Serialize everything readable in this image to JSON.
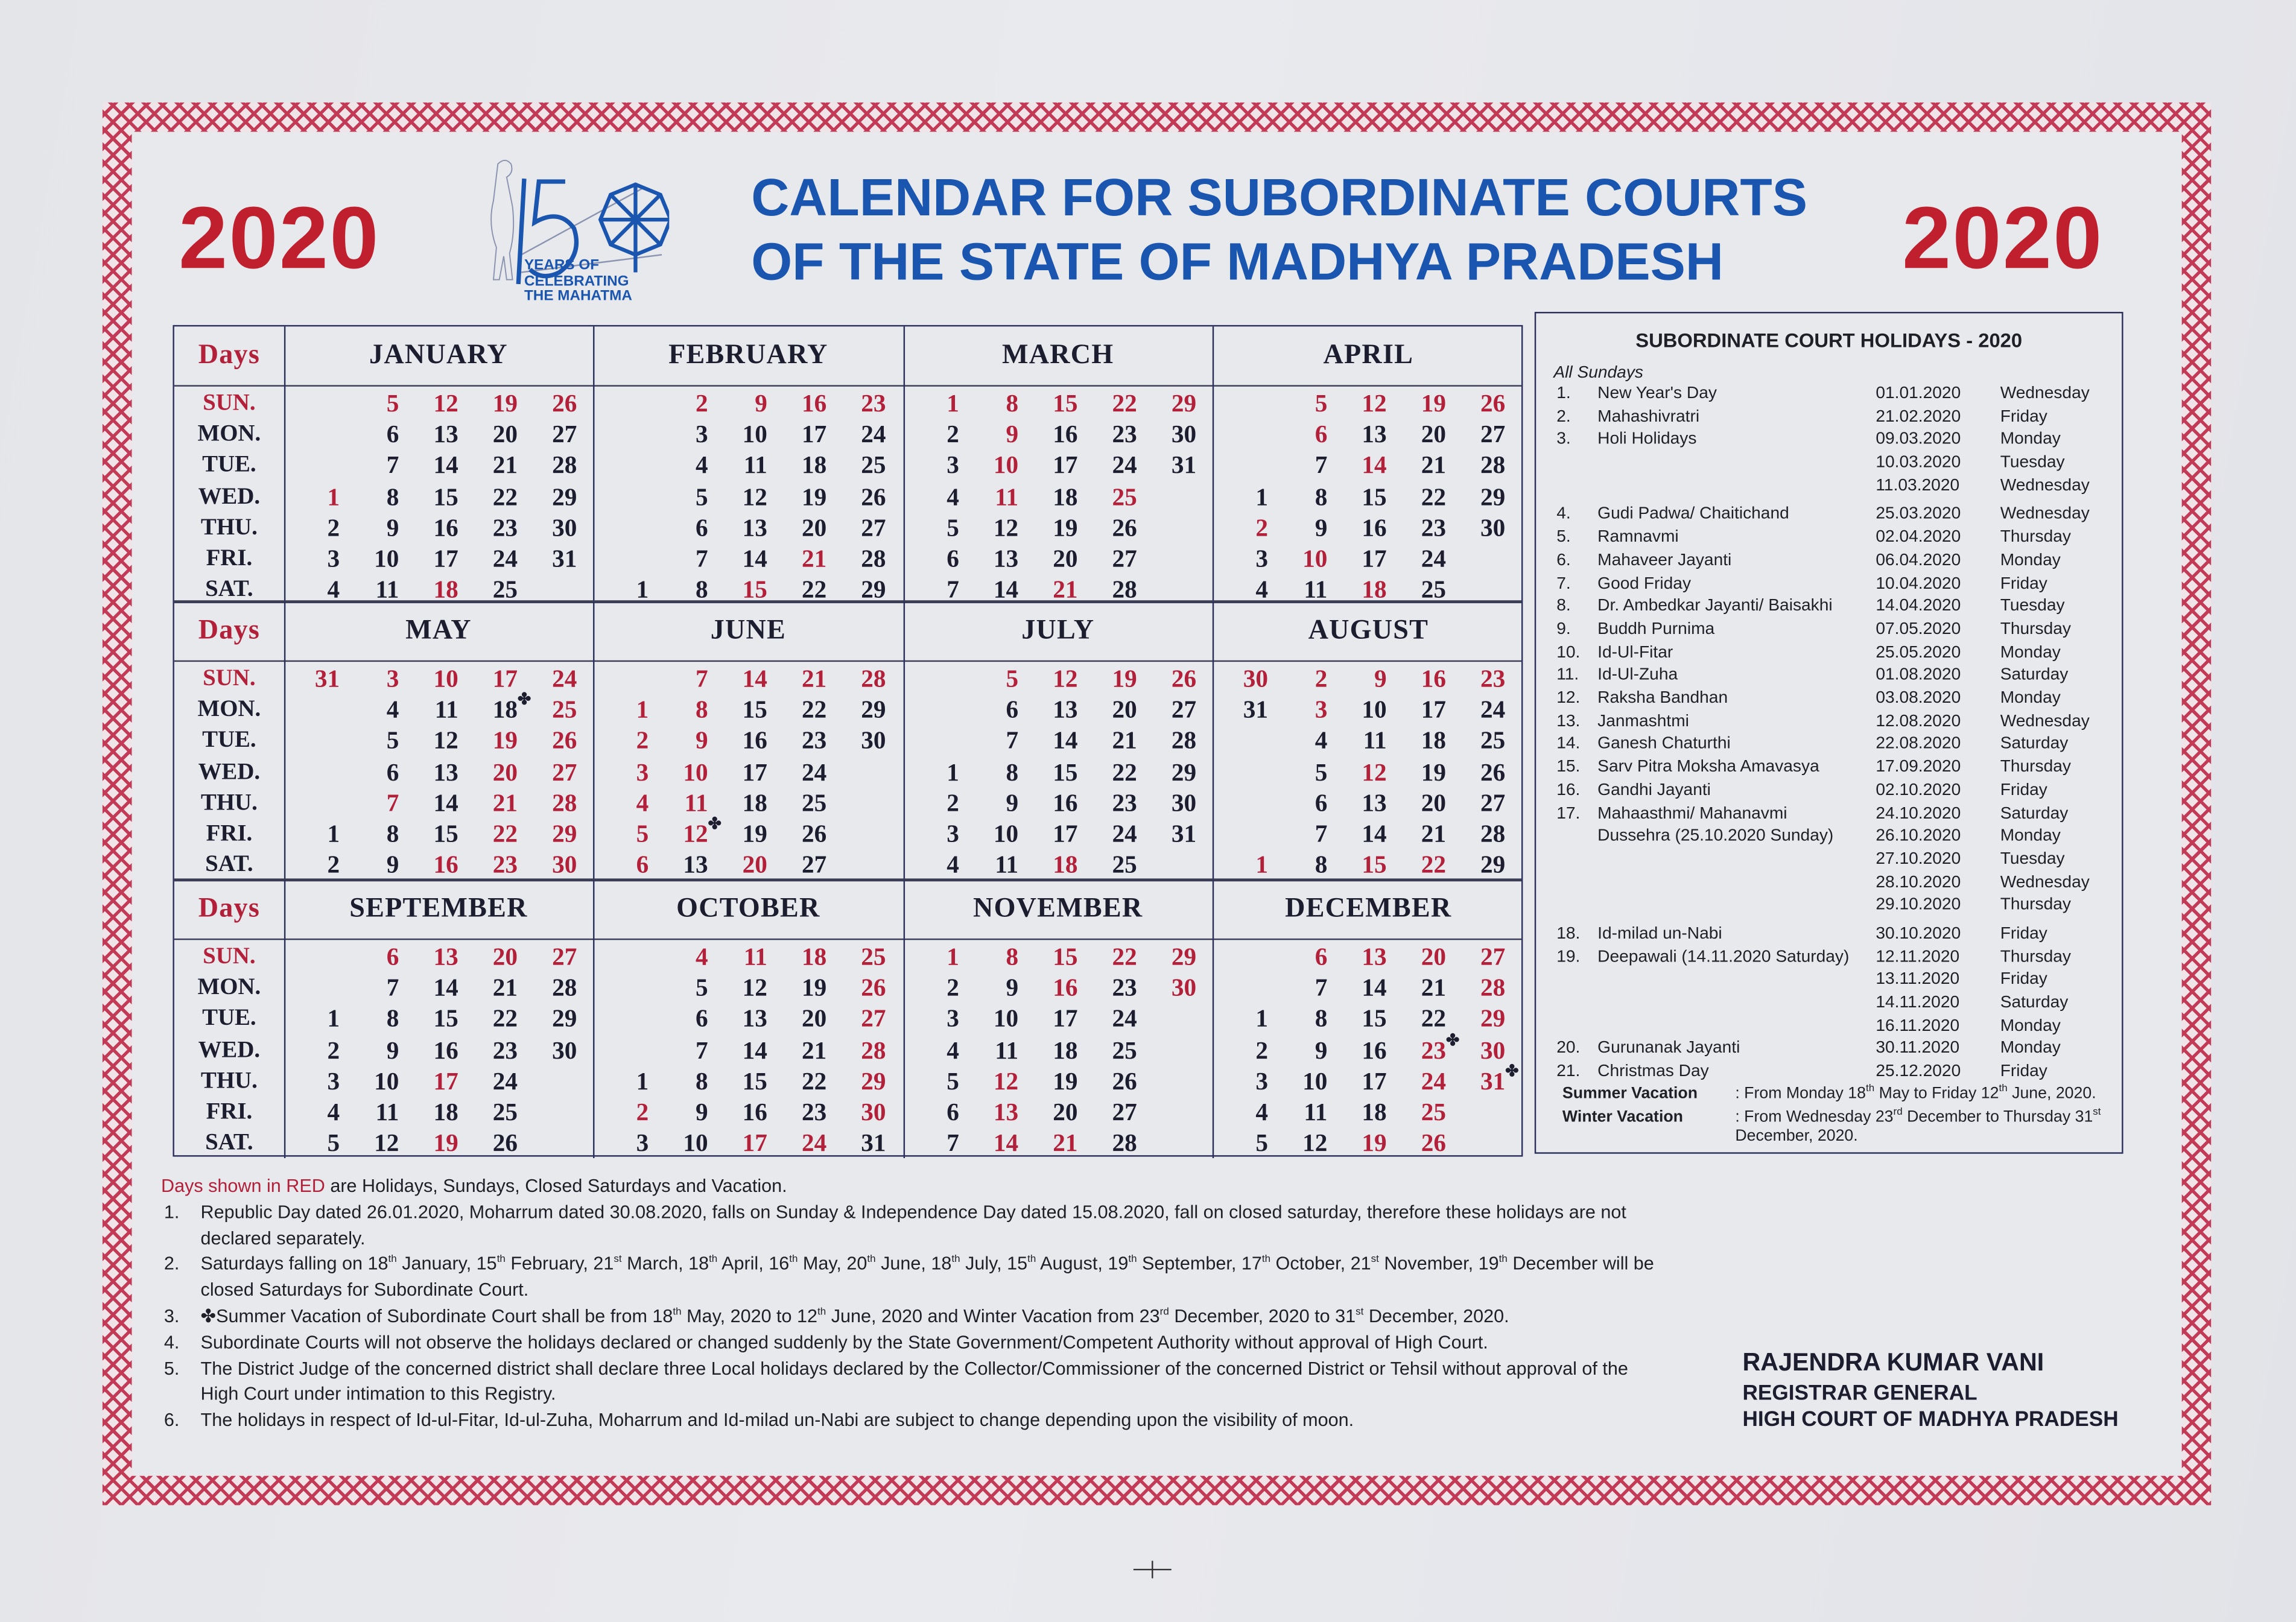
{
  "header": {
    "year_left": "2020",
    "year_right": "2020",
    "title_line1": "CALENDAR FOR SUBORDINATE COURTS",
    "title_line2": "OF THE STATE OF MADHYA PRADESH",
    "logo": {
      "number": "150",
      "line1": "YEARS OF",
      "line2": "CELEBRATING",
      "line3": "THE MAHATMA",
      "icon": "gandhi-charkha-logo"
    }
  },
  "colors": {
    "red": "#b3203a",
    "blue": "#1a55b0",
    "text": "#1d1d30",
    "border": "#c23a55"
  },
  "calendar": {
    "days_label": "Days",
    "day_names": [
      "SUN.",
      "MON.",
      "TUE.",
      "WED.",
      "THU.",
      "FRI.",
      "SAT."
    ],
    "months": [
      {
        "name": "JANUARY",
        "first_weekday": 3,
        "days": 31,
        "red": [
          1,
          5,
          12,
          18,
          19,
          26
        ],
        "star": []
      },
      {
        "name": "FEBRUARY",
        "first_weekday": 6,
        "days": 29,
        "red": [
          2,
          9,
          15,
          16,
          21,
          23
        ],
        "star": []
      },
      {
        "name": "MARCH",
        "first_weekday": 0,
        "days": 31,
        "red": [
          1,
          8,
          9,
          10,
          11,
          15,
          21,
          22,
          25,
          29
        ],
        "star": []
      },
      {
        "name": "APRIL",
        "first_weekday": 3,
        "days": 30,
        "red": [
          2,
          5,
          6,
          10,
          12,
          14,
          18,
          19,
          26
        ],
        "star": []
      },
      {
        "name": "MAY",
        "first_weekday": 5,
        "days": 31,
        "red": [
          3,
          7,
          10,
          16,
          17,
          19,
          20,
          21,
          22,
          23,
          24,
          25,
          26,
          27,
          28,
          29,
          30,
          31
        ],
        "star": [
          18
        ]
      },
      {
        "name": "JUNE",
        "first_weekday": 1,
        "days": 30,
        "red": [
          1,
          2,
          3,
          4,
          5,
          6,
          7,
          8,
          9,
          10,
          11,
          12,
          14,
          20,
          21,
          28
        ],
        "star": [
          12
        ]
      },
      {
        "name": "JULY",
        "first_weekday": 3,
        "days": 31,
        "red": [
          5,
          12,
          18,
          19,
          26
        ],
        "star": []
      },
      {
        "name": "AUGUST",
        "first_weekday": 6,
        "days": 31,
        "red": [
          1,
          2,
          3,
          9,
          12,
          15,
          16,
          22,
          23,
          30
        ],
        "star": []
      },
      {
        "name": "SEPTEMBER",
        "first_weekday": 2,
        "days": 30,
        "red": [
          6,
          13,
          17,
          19,
          20,
          27
        ],
        "star": []
      },
      {
        "name": "OCTOBER",
        "first_weekday": 4,
        "days": 31,
        "red": [
          2,
          4,
          11,
          17,
          18,
          24,
          25,
          26,
          27,
          28,
          29,
          30
        ],
        "star": []
      },
      {
        "name": "NOVEMBER",
        "first_weekday": 0,
        "days": 30,
        "red": [
          1,
          8,
          12,
          13,
          14,
          15,
          16,
          21,
          22,
          29,
          30
        ],
        "star": []
      },
      {
        "name": "DECEMBER",
        "first_weekday": 2,
        "days": 31,
        "red": [
          6,
          13,
          19,
          20,
          23,
          24,
          25,
          26,
          27,
          28,
          29,
          30,
          31
        ],
        "star": [
          23,
          31
        ]
      }
    ]
  },
  "holidays": {
    "title": "SUBORDINATE COURT HOLIDAYS - 2020",
    "all_sundays": "All Sundays",
    "items": [
      {
        "num": "1.",
        "name": "New Year's Day",
        "dates": [
          [
            "01.01.2020",
            "Wednesday"
          ]
        ]
      },
      {
        "num": "2.",
        "name": "Mahashivratri",
        "dates": [
          [
            "21.02.2020",
            "Friday"
          ]
        ]
      },
      {
        "num": "3.",
        "name": "Holi Holidays",
        "dates": [
          [
            "09.03.2020",
            "Monday"
          ],
          [
            "10.03.2020",
            "Tuesday"
          ],
          [
            "11.03.2020",
            "Wednesday"
          ]
        ]
      },
      {
        "num": "4.",
        "name": "Gudi Padwa/ Chaitichand",
        "dates": [
          [
            "25.03.2020",
            "Wednesday"
          ]
        ]
      },
      {
        "num": "5.",
        "name": "Ramnavmi",
        "dates": [
          [
            "02.04.2020",
            "Thursday"
          ]
        ]
      },
      {
        "num": "6.",
        "name": "Mahaveer Jayanti",
        "dates": [
          [
            "06.04.2020",
            "Monday"
          ]
        ]
      },
      {
        "num": "7.",
        "name": "Good Friday",
        "dates": [
          [
            "10.04.2020",
            "Friday"
          ]
        ]
      },
      {
        "num": "8.",
        "name": "Dr. Ambedkar Jayanti/ Baisakhi",
        "dates": [
          [
            "14.04.2020",
            "Tuesday"
          ]
        ]
      },
      {
        "num": "9.",
        "name": "Buddh Purnima",
        "dates": [
          [
            "07.05.2020",
            "Thursday"
          ]
        ]
      },
      {
        "num": "10.",
        "name": "Id-Ul-Fitar",
        "dates": [
          [
            "25.05.2020",
            "Monday"
          ]
        ]
      },
      {
        "num": "11.",
        "name": "Id-Ul-Zuha",
        "dates": [
          [
            "01.08.2020",
            "Saturday"
          ]
        ]
      },
      {
        "num": "12.",
        "name": "Raksha Bandhan",
        "dates": [
          [
            "03.08.2020",
            "Monday"
          ]
        ]
      },
      {
        "num": "13.",
        "name": "Janmashtmi",
        "dates": [
          [
            "12.08.2020",
            "Wednesday"
          ]
        ]
      },
      {
        "num": "14.",
        "name": "Ganesh Chaturthi",
        "dates": [
          [
            "22.08.2020",
            "Saturday"
          ]
        ]
      },
      {
        "num": "15.",
        "name": "Sarv Pitra Moksha Amavasya",
        "dates": [
          [
            "17.09.2020",
            "Thursday"
          ]
        ]
      },
      {
        "num": "16.",
        "name": "Gandhi Jayanti",
        "dates": [
          [
            "02.10.2020",
            "Friday"
          ]
        ]
      },
      {
        "num": "17.",
        "name": "Mahaasthmi/ Mahanavmi",
        "name2": "Dussehra (25.10.2020 Sunday)",
        "dates": [
          [
            "24.10.2020",
            "Saturday"
          ],
          [
            "26.10.2020",
            "Monday"
          ],
          [
            "27.10.2020",
            "Tuesday"
          ],
          [
            "28.10.2020",
            "Wednesday"
          ],
          [
            "29.10.2020",
            "Thursday"
          ]
        ]
      },
      {
        "num": "18.",
        "name": "Id-milad un-Nabi",
        "dates": [
          [
            "30.10.2020",
            "Friday"
          ]
        ]
      },
      {
        "num": "19.",
        "name": "Deepawali (14.11.2020 Saturday)",
        "dates": [
          [
            "12.11.2020",
            "Thursday"
          ],
          [
            "13.11.2020",
            "Friday"
          ],
          [
            "14.11.2020",
            "Saturday"
          ],
          [
            "16.11.2020",
            "Monday"
          ]
        ]
      },
      {
        "num": "20.",
        "name": "Gurunanak Jayanti",
        "dates": [
          [
            "30.11.2020",
            "Monday"
          ]
        ]
      },
      {
        "num": "21.",
        "name": "Christmas Day",
        "dates": [
          [
            "25.12.2020",
            "Friday"
          ]
        ]
      }
    ],
    "summer_label": "Summer Vacation",
    "summer_text": [
      ": From Monday 18",
      "th",
      " May to Friday 12",
      "th",
      " June, 2020."
    ],
    "winter_label": "Winter Vacation",
    "winter_text": [
      ": From Wednesday 23",
      "rd",
      " December to Thursday 31",
      "st",
      " December, 2020."
    ]
  },
  "notes": {
    "legend_red": "Days shown in RED",
    "legend_rest": " are Holidays, Sundays, Closed Saturdays and Vacation.",
    "items": [
      {
        "num": "1.",
        "parts": [
          "Republic Day dated 26.01.2020, Moharrum dated 30.08.2020, falls on Sunday & Independence Day dated 15.08.2020, fall on closed saturday, therefore these holidays are not declared separately."
        ]
      },
      {
        "num": "2.",
        "parts": [
          "Saturdays falling on 18",
          "th",
          " January, 15",
          "th",
          " February, 21",
          "st",
          " March, 18",
          "th",
          " April, 16",
          "th",
          " May, 20",
          "th",
          " June, 18",
          "th",
          " July, 15",
          "th",
          " August, 19",
          "th",
          " September, 17",
          "th",
          " October, 21",
          "st",
          " November, 19",
          "th",
          " December will be closed Saturdays for Subordinate Court."
        ]
      },
      {
        "num": "3.",
        "parts": [
          "✤Summer Vacation of Subordinate Court shall be from 18",
          "th",
          " May, 2020 to 12",
          "th",
          " June, 2020 and Winter Vacation from 23",
          "rd",
          " December, 2020 to 31",
          "st",
          " December, 2020."
        ]
      },
      {
        "num": "4.",
        "parts": [
          "Subordinate Courts will not observe the holidays declared or changed suddenly by the State Government/Competent Authority without approval of High Court."
        ]
      },
      {
        "num": "5.",
        "parts": [
          "The District Judge of the concerned district shall declare three Local holidays declared by the Collector/Commissioner of the concerned District or Tehsil without approval of the High Court under intimation to this Registry."
        ]
      },
      {
        "num": "6.",
        "parts": [
          "The holidays in respect of Id-ul-Fitar, Id-ul-Zuha, Moharrum and Id-milad un-Nabi are subject to change depending upon the visibility of moon."
        ]
      }
    ]
  },
  "signature": {
    "name": "RAJENDRA KUMAR VANI",
    "designation": "REGISTRAR GENERAL",
    "office": "HIGH COURT OF MADHYA PRADESH"
  }
}
